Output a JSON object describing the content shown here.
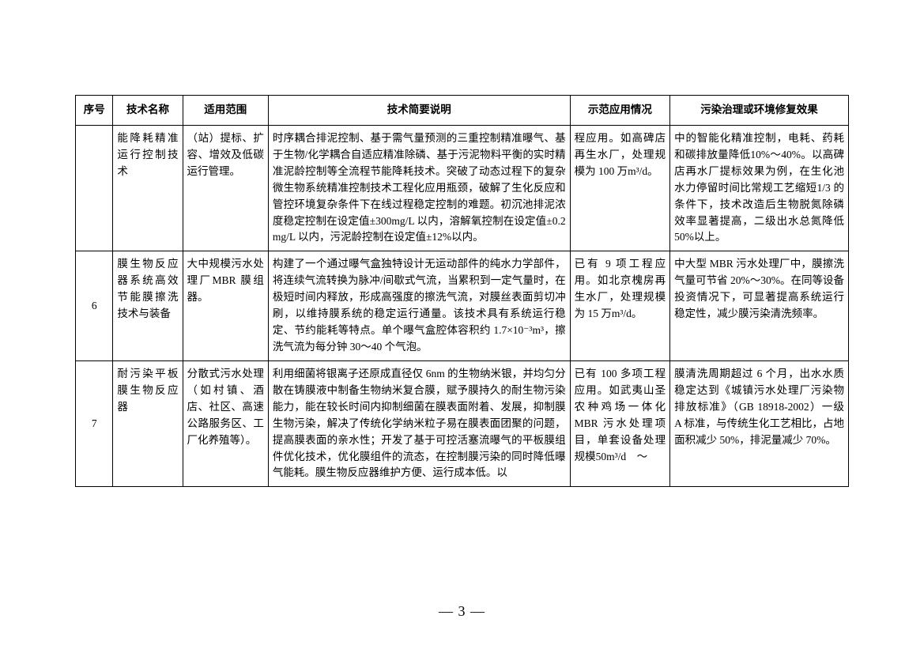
{
  "columns": [
    "序号",
    "技术名称",
    "适用范围",
    "技术简要说明",
    "示范应用情况",
    "污染治理或环境修复效果"
  ],
  "rows": [
    {
      "num": "",
      "name": "能降耗精准运行控制技术",
      "scope": "（站）提标、扩容、增效及低碳运行管理。",
      "desc": "时序耦合排泥控制、基于需气量预测的三重控制精准曝气、基于生物/化学耦合自适应精准除磷、基于污泥物料平衡的实时精准泥龄控制等全流程节能降耗技术。突破了动态过程下的复杂微生物系统精准控制技术工程化应用瓶颈，破解了生化反应和管控环境复杂条件下在线过程稳定控制的难题。初沉池排泥浓度稳定控制在设定值±300mg/L 以内，溶解氧控制在设定值±0.2 mg/L 以内，污泥龄控制在设定值±12%以内。",
      "app": "程应用。如高碑店再生水厂，处理规模为 100 万m³/d。",
      "eff": "中的智能化精准控制，电耗、药耗和碳排放量降低10%～40%。以高碑店再水厂提标效果为例，在生化池水力停留时间比常规工艺缩短1/3 的条件下，技术改造后生物脱氮除磷效率显著提高，二级出水总氮降低 50%以上。"
    },
    {
      "num": "6",
      "name": "膜生物反应器系统高效节能膜擦洗技术与装备",
      "scope": "大中规模污水处理厂MBR 膜组器。",
      "desc": "构建了一个通过曝气盒独特设计无运动部件的纯水力学部件，将连续气流转换为脉冲/间歇式气流，当累积到一定气量时，在极短时间内释放，形成高强度的擦洗气流，对膜丝表面剪切冲刷，以维持膜系统的稳定运行通量。该技术具有系统运行稳定、节约能耗等特点。单个曝气盒腔体容积约 1.7×10⁻³m³，擦洗气流为每分钟 30～40 个气泡。",
      "app": "已有 9 项工程应用。如北京槐房再生水厂，处理规模为 15 万m³/d。",
      "eff": "中大型 MBR 污水处理厂中，膜擦洗气量可节省 20%～30%。在同等设备投资情况下，可显著提高系统运行稳定性，减少膜污染清洗频率。"
    },
    {
      "num": "7",
      "name": "耐污染平板膜生物反应器",
      "scope": "分散式污水处理（如村镇、酒店、社区、高速公路服务区、工厂化养殖等）。",
      "desc": "利用细菌将银离子还原成直径仅 6nm 的生物纳米银，并均匀分散在铸膜液中制备生物纳米复合膜，赋予膜持久的耐生物污染能力，能在较长时间内抑制细菌在膜表面附着、发展，抑制膜生物污染，解决了传统化学纳米粒子易在膜表面团聚的问题，提高膜表面的亲水性；开发了基于可控活塞流曝气的平板膜组件优化技术，优化膜组件的流态，在控制膜污染的同时降低曝气能耗。膜生物反应器维护方便、运行成本低。以",
      "app": "已有 100 多项工程应用。如武夷山圣农种鸡场一体化MBR 污水处理项目，单套设备处理规模50m³/d　～",
      "eff": "膜清洗周期超过 6 个月，出水水质稳定达到《城镇污水处理厂污染物排放标准》（GB 18918-2002）一级 A 标准，与传统生化工艺相比，占地面积减少 50%，排泥量减少 70%。"
    }
  ],
  "pageNumber": "— 3 —"
}
